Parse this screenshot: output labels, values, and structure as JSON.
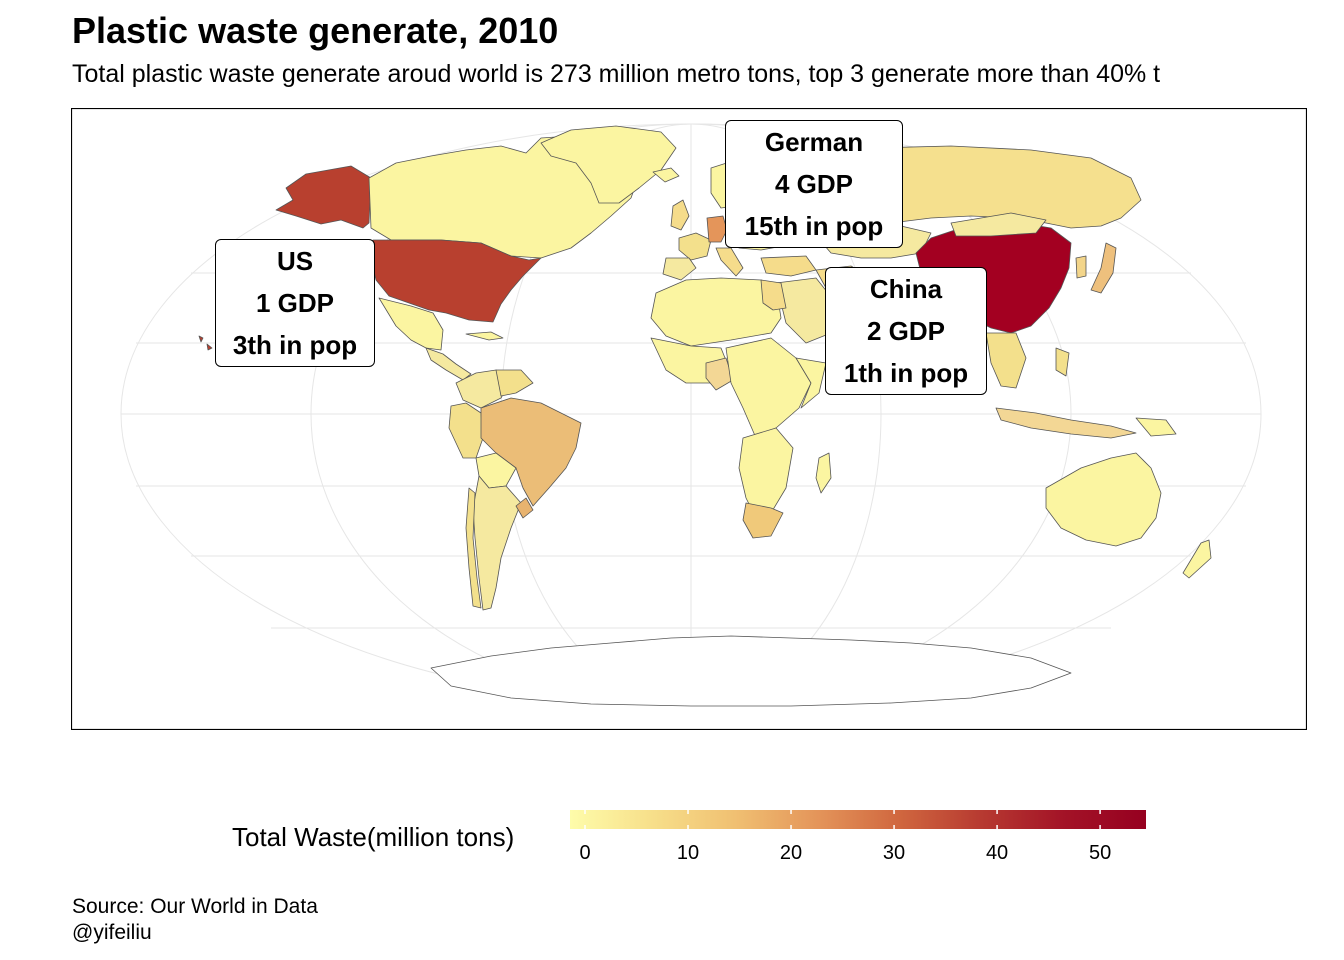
{
  "title": "Plastic waste generate, 2010",
  "subtitle": "Total plastic waste generate aroud world is 273 million metro tons, top 3 generate more than 40% t",
  "legend": {
    "title": "Total Waste(million tons)",
    "ticks": [
      "0",
      "10",
      "20",
      "30",
      "40",
      "50"
    ],
    "range": [
      0,
      53
    ],
    "colors": [
      "#fefcaa",
      "#f7df8a",
      "#f0c072",
      "#e4955a",
      "#d0673f",
      "#b73a31",
      "#a31327",
      "#960020"
    ]
  },
  "callouts": {
    "us": {
      "line1": "US",
      "line2": "1 GDP",
      "line3": "3th in pop"
    },
    "germany": {
      "line1": "German",
      "line2": "4 GDP",
      "line3": "15th in pop"
    },
    "china": {
      "line1": "China",
      "line2": "2 GDP",
      "line3": "1th in pop"
    }
  },
  "caption": {
    "source": "Source: Our World in Data",
    "author": "@yifeiliu"
  },
  "map_colors": {
    "china": "#a30021",
    "usa": "#b8402f",
    "germany": "#e4955a",
    "brazil": "#ebbd77",
    "russia": "#f5e08e",
    "low": "#fbf5a1",
    "mid": "#f5dc8b",
    "ocean": "#ffffff",
    "graticule": "#e6e6e6"
  }
}
